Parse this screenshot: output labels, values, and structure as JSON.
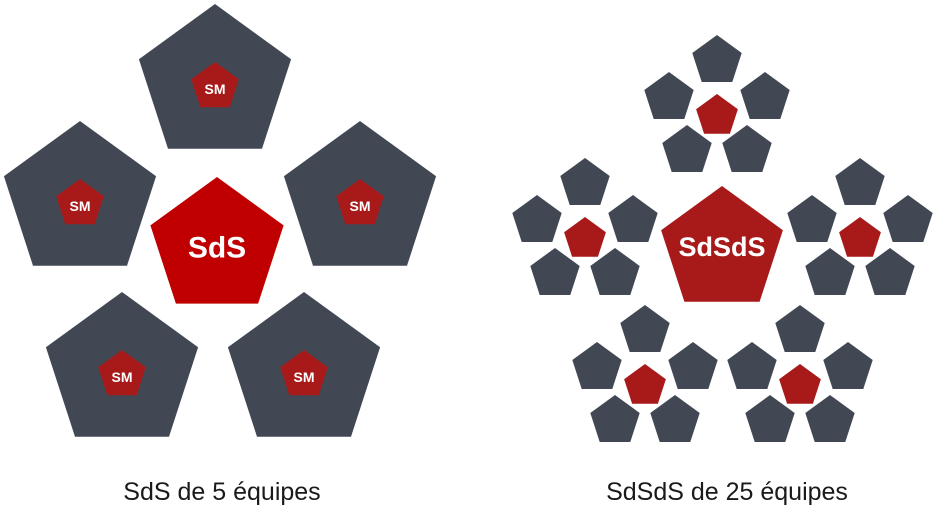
{
  "colors": {
    "team": "#414854",
    "team_stroke": "#363c47",
    "sm": "#a81a1a",
    "sds": "#c00000",
    "sdsds": "#a81a1a",
    "label": "#ffffff"
  },
  "icons": {
    "team": "gray-pentagon",
    "scrum_master": "red-pentagon"
  },
  "left_diagram": {
    "center_label": "SdS",
    "team_label": "SM",
    "team_count": 5,
    "caption": "SdS de 5 équipes"
  },
  "right_diagram": {
    "center_label": "SdSdS",
    "cluster_count": 5,
    "teams_per_cluster": 4,
    "caption": "SdSdS de 25 équipes"
  }
}
